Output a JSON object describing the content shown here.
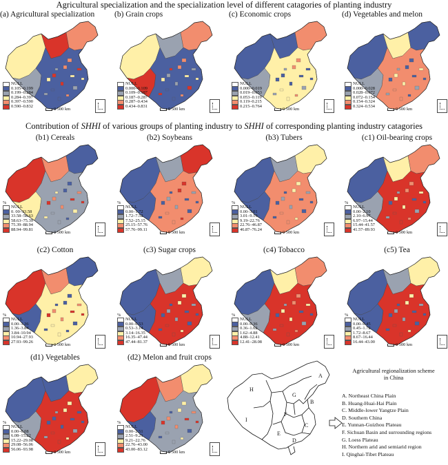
{
  "header": {
    "title_top": "Agricultural specialization and the specialization level of different catagories of planting industry",
    "title_mid_a": "Contribution of ",
    "title_mid_b": "SHHI",
    "title_mid_c": " of various groups of planting industry to ",
    "title_mid_d": "SHHI",
    "title_mid_e": " of corresponding planting industry catagories"
  },
  "common": {
    "null_label": "NULL",
    "percent": "%",
    "scale_label": "0 500 km"
  },
  "colors": {
    "null": "#ffffff",
    "c1": "#4b60a0",
    "c2": "#9aa2b0",
    "c3": "#fff0a8",
    "c4": "#f28d6e",
    "c5": "#d9342a"
  },
  "panels": {
    "a": {
      "title": "(a) Agricultural specialization",
      "legend": [
        "0.105–0.199",
        "0.199–0.284",
        "0.284–0.397",
        "0.397–0.590",
        "0.590–0.832"
      ]
    },
    "b": {
      "title": "(b) Grain crops",
      "legend": [
        "0.000–0.109",
        "0.109–0.187",
        "0.187–0.287",
        "0.287–0.434",
        "0.434–0.831"
      ]
    },
    "c": {
      "title": "(c) Economic crops",
      "legend": [
        "0.000–0.019",
        "0.019–0.053",
        "0.053–0.119",
        "0.119–0.215",
        "0.215–0.764"
      ]
    },
    "d": {
      "title": "(d) Vegetables and melon",
      "legend": [
        "0.000–0.028",
        "0.028–0.072",
        "0.072–0.154",
        "0.154–0.324",
        "0.324–0.534"
      ]
    },
    "b1": {
      "title": "(b1) Cereals",
      "legend": [
        "0.  00–33.58",
        "33.58–58.63",
        "58.63–75.39",
        "75.39–88.94",
        "88.94–99.81"
      ]
    },
    "b2": {
      "title": "(b2) Soybeans",
      "legend": [
        "0.00–1.72",
        "1.72–7.52",
        "7.52–25.15",
        "25.15–57.76",
        "57.76–99.11"
      ]
    },
    "b3": {
      "title": "(b3) Tubers",
      "legend": [
        "0.00–3.01",
        "3.01–9.19",
        "9.19–22.76",
        "22.76–46.87",
        "46.87–76.24"
      ]
    },
    "c1": {
      "title": "(c1) Oil-bearing crops",
      "legend": [
        "0.00–2.10",
        "2.10–6.97",
        "6.97–15.44",
        "15.44–41.57",
        "41.57–89.93"
      ]
    },
    "c2": {
      "title": "(c2) Cotton",
      "legend": [
        "0.00–1.36",
        "1.36–3.84",
        "3.84–10.94",
        "10.94–27.93",
        "27.93–99.26"
      ]
    },
    "c3": {
      "title": "(c3) Sugar crops",
      "legend": [
        "0.00–0.53",
        "0.53–3.14",
        "3.14–16.35",
        "16.35–47.44",
        "47.44–81.37"
      ]
    },
    "c4": {
      "title": "(c4) Tobacco",
      "legend": [
        "0.00–0.36",
        "0.36–1.62",
        "1.62–4.88",
        "4.88–12.41",
        "12.41–28.08"
      ]
    },
    "c5": {
      "title": "(c5) Tea",
      "legend": [
        "0.00–0.45",
        "0.45–1.72",
        "1.72–8.67",
        "8.67–16.44",
        "16.44–43.00"
      ]
    },
    "d1": {
      "title": "(d1) Vegetables",
      "legend": [
        "0.00–6.08",
        "6.08–15.22",
        "15.22–29.08",
        "29.08–56.06",
        "56.06–93.98"
      ]
    },
    "d2": {
      "title": "(d2) Melon and fruit crops",
      "legend": [
        "0.00–2.51",
        "2.51–9.21",
        "9.21–22.76",
        "22.76–43.00",
        "43.00–83.12"
      ]
    }
  },
  "regions": {
    "heading_1": "Agricultural regionalization scheme",
    "heading_2": "in China",
    "map_letters": [
      "A",
      "B",
      "C",
      "D",
      "E",
      "F",
      "G",
      "H",
      "I"
    ],
    "items": [
      "A. Northeast China Plain",
      "B. Huang-Huai-Hai Plain",
      "C. Middle-lower Yangtze Plain",
      "D. Southern China",
      "E. Yunnan-Guizhou Plateau",
      "F. Sichuan Basin and surrounding regions",
      "G. Loess Plateau",
      "H. Northern arid and semiarid region",
      "I. Qinghai-Tibet Plateau"
    ]
  }
}
